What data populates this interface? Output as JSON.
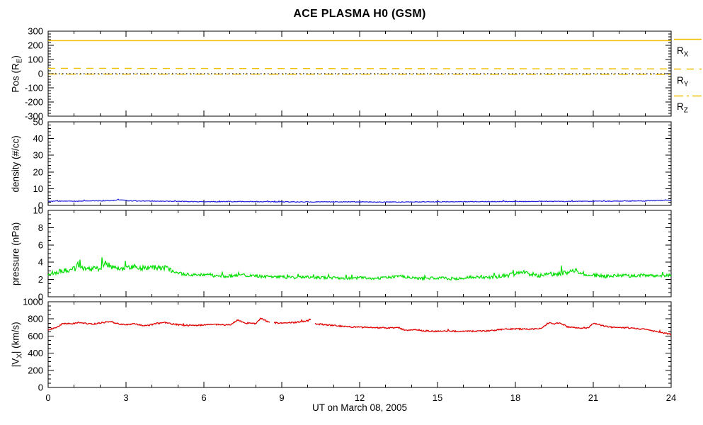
{
  "title": "ACE PLASMA H0 (GSM)",
  "xlabel": "UT on March 08, 2005",
  "legend": [
    {
      "label": [
        "R",
        "X"
      ],
      "style": "solid",
      "color": "#F0C000"
    },
    {
      "label": [
        "R",
        "Y"
      ],
      "style": "dashed",
      "color": "#F0C000"
    },
    {
      "label": [
        "R",
        "Z"
      ],
      "style": "dashdot",
      "color": "#F0C000"
    }
  ],
  "chart_data": [
    {
      "type": "line",
      "panel": "spacecraft-position",
      "ylabel": [
        "Pos (R",
        "E",
        ")"
      ],
      "ylim": [
        -300,
        300
      ],
      "yticks": [
        300,
        200,
        100,
        0,
        -100,
        -200,
        -300
      ],
      "minor_y": 20,
      "xlim": [
        0,
        24
      ],
      "xticks": [
        0,
        3,
        6,
        9,
        12,
        15,
        18,
        21,
        24
      ],
      "minor_x": 1,
      "series": [
        {
          "name": "R_X",
          "color": "#F0C000",
          "style": "solid",
          "width": 1.5,
          "keypoints": [
            [
              0,
              233
            ],
            [
              24,
              233
            ]
          ]
        },
        {
          "name": "R_Y",
          "color": "#F0C000",
          "style": "dashed",
          "width": 1.4,
          "keypoints": [
            [
              0,
              38
            ],
            [
              24,
              34
            ]
          ]
        },
        {
          "name": "R_Z",
          "color": "#F0C000",
          "style": "dashdot",
          "width": 1.4,
          "keypoints": [
            [
              0,
              -3
            ],
            [
              24,
              -5
            ]
          ]
        },
        {
          "name": "zero-reference",
          "color": "#000000",
          "style": "dotted",
          "width": 1.2,
          "keypoints": [
            [
              0,
              0
            ],
            [
              24,
              0
            ]
          ]
        }
      ]
    },
    {
      "type": "line",
      "panel": "density",
      "ylabel": [
        "density (#/cc)",
        "",
        ""
      ],
      "ylim": [
        0,
        50
      ],
      "yticks": [
        50,
        40,
        30,
        20,
        10,
        0
      ],
      "minor_y": 2,
      "xlim": [
        0,
        24
      ],
      "xticks": [
        0,
        3,
        6,
        9,
        12,
        15,
        18,
        21,
        24
      ],
      "minor_x": 1,
      "series": [
        {
          "name": "proton-density",
          "color": "#2222DD",
          "style": "solid",
          "width": 1.2,
          "noise": 0.22,
          "spike_prob": 0.012,
          "spike_scale": 2.0,
          "keypoints": [
            [
              0,
              2.4
            ],
            [
              0.5,
              2.6
            ],
            [
              1,
              2.5
            ],
            [
              1.5,
              2.6
            ],
            [
              2,
              2.7
            ],
            [
              2.5,
              2.9
            ],
            [
              2.7,
              3.5
            ],
            [
              3,
              2.9
            ],
            [
              3.5,
              2.6
            ],
            [
              4,
              2.7
            ],
            [
              4.5,
              2.5
            ],
            [
              5,
              2.4
            ],
            [
              5.5,
              2.3
            ],
            [
              6,
              2.2
            ],
            [
              7,
              2.3
            ],
            [
              8,
              2.3
            ],
            [
              9,
              2.1
            ],
            [
              10,
              2.1
            ],
            [
              11,
              2.2
            ],
            [
              12,
              2.1
            ],
            [
              13,
              2.0
            ],
            [
              14,
              2.1
            ],
            [
              15,
              2.2
            ],
            [
              16,
              2.2
            ],
            [
              17,
              2.3
            ],
            [
              18,
              2.3
            ],
            [
              19,
              2.4
            ],
            [
              20,
              2.4
            ],
            [
              21,
              2.5
            ],
            [
              22,
              2.6
            ],
            [
              23,
              2.7
            ],
            [
              24,
              3.1
            ]
          ]
        }
      ]
    },
    {
      "type": "line",
      "panel": "pressure",
      "ylabel": [
        "pressure (nPa)",
        "",
        ""
      ],
      "ylim": [
        0,
        10
      ],
      "yticks": [
        10,
        8,
        6,
        4,
        2,
        0
      ],
      "minor_y": 0.5,
      "xlim": [
        0,
        24
      ],
      "xticks": [
        0,
        3,
        6,
        9,
        12,
        15,
        18,
        21,
        24
      ],
      "minor_x": 1,
      "series": [
        {
          "name": "flow-pressure",
          "color": "#00DE00",
          "style": "solid",
          "width": 1.2,
          "noise_keys": [
            [
              0,
              0.28
            ],
            [
              4.5,
              0.32
            ],
            [
              5.5,
              0.18
            ],
            [
              12,
              0.15
            ],
            [
              17,
              0.18
            ],
            [
              18,
              0.26
            ],
            [
              21,
              0.26
            ],
            [
              22,
              0.18
            ],
            [
              24,
              0.18
            ]
          ],
          "spike_prob": 0.03,
          "spike_scale": 2.2,
          "keypoints": [
            [
              0,
              2.6
            ],
            [
              0.3,
              2.8
            ],
            [
              0.7,
              3.1
            ],
            [
              1,
              3.2
            ],
            [
              1.3,
              3.4
            ],
            [
              1.6,
              3.2
            ],
            [
              2,
              3.3
            ],
            [
              2.2,
              3.9
            ],
            [
              2.5,
              3.4
            ],
            [
              2.8,
              3.2
            ],
            [
              3,
              3.3
            ],
            [
              3.3,
              3.5
            ],
            [
              3.5,
              3.2
            ],
            [
              3.8,
              3.4
            ],
            [
              4,
              3.5
            ],
            [
              4.2,
              3.3
            ],
            [
              4.5,
              3.4
            ],
            [
              4.8,
              3.0
            ],
            [
              5,
              2.8
            ],
            [
              5.3,
              2.6
            ],
            [
              5.6,
              2.5
            ],
            [
              6,
              2.6
            ],
            [
              6.5,
              2.4
            ],
            [
              7,
              2.4
            ],
            [
              7.5,
              2.5
            ],
            [
              8,
              2.4
            ],
            [
              8.5,
              2.3
            ],
            [
              9,
              2.3
            ],
            [
              9.5,
              2.2
            ],
            [
              10,
              2.3
            ],
            [
              10.5,
              2.2
            ],
            [
              11,
              2.2
            ],
            [
              11.5,
              2.1
            ],
            [
              12,
              2.2
            ],
            [
              12.5,
              2.1
            ],
            [
              13,
              2.2
            ],
            [
              13.5,
              2.4
            ],
            [
              14,
              2.2
            ],
            [
              14.5,
              2.1
            ],
            [
              15,
              2.2
            ],
            [
              15.5,
              2.1
            ],
            [
              16,
              2.2
            ],
            [
              16.5,
              2.3
            ],
            [
              17,
              2.2
            ],
            [
              17.5,
              2.4
            ],
            [
              18,
              2.6
            ],
            [
              18.3,
              2.9
            ],
            [
              18.6,
              2.6
            ],
            [
              19,
              2.5
            ],
            [
              19.3,
              2.7
            ],
            [
              19.6,
              2.6
            ],
            [
              20,
              2.8
            ],
            [
              20.3,
              3.1
            ],
            [
              20.6,
              2.7
            ],
            [
              21,
              2.5
            ],
            [
              21.5,
              2.4
            ],
            [
              22,
              2.5
            ],
            [
              22.5,
              2.4
            ],
            [
              23,
              2.5
            ],
            [
              23.5,
              2.4
            ],
            [
              24,
              2.5
            ]
          ]
        }
      ]
    },
    {
      "type": "line",
      "panel": "velocity",
      "ylabel": [
        "|V",
        "X",
        "| (km/s)"
      ],
      "ylim": [
        0,
        1000
      ],
      "yticks": [
        1000,
        800,
        600,
        400,
        200,
        0
      ],
      "minor_y": 50,
      "xlim": [
        0,
        24
      ],
      "xticks": [
        0,
        3,
        6,
        9,
        12,
        15,
        18,
        21,
        24
      ],
      "minor_x": 1,
      "series": [
        {
          "name": "vx-magnitude",
          "color": "#E00000",
          "style": "solid",
          "width": 1.3,
          "noise": 8,
          "spike_prob": 0.008,
          "spike_scale": 2.0,
          "gaps": [
            [
              8.55,
              8.68
            ],
            [
              10.12,
              10.28
            ]
          ],
          "keypoints": [
            [
              0,
              672
            ],
            [
              0.3,
              700
            ],
            [
              0.6,
              748
            ],
            [
              0.9,
              742
            ],
            [
              1.2,
              758
            ],
            [
              1.5,
              745
            ],
            [
              1.8,
              742
            ],
            [
              2.1,
              758
            ],
            [
              2.4,
              768
            ],
            [
              2.7,
              742
            ],
            [
              3,
              730
            ],
            [
              3.3,
              744
            ],
            [
              3.6,
              722
            ],
            [
              3.9,
              728
            ],
            [
              4.2,
              748
            ],
            [
              4.5,
              756
            ],
            [
              4.8,
              740
            ],
            [
              5.1,
              728
            ],
            [
              5.5,
              722
            ],
            [
              6,
              730
            ],
            [
              6.5,
              734
            ],
            [
              7,
              728
            ],
            [
              7.3,
              786
            ],
            [
              7.6,
              752
            ],
            [
              8,
              744
            ],
            [
              8.2,
              806
            ],
            [
              8.4,
              776
            ],
            [
              8.6,
              756
            ],
            [
              9,
              752
            ],
            [
              9.5,
              758
            ],
            [
              10,
              778
            ],
            [
              10.1,
              798
            ],
            [
              10.3,
              742
            ],
            [
              10.6,
              734
            ],
            [
              11,
              722
            ],
            [
              11.5,
              710
            ],
            [
              12,
              702
            ],
            [
              12.5,
              700
            ],
            [
              13,
              694
            ],
            [
              13.5,
              698
            ],
            [
              13.8,
              664
            ],
            [
              14.1,
              678
            ],
            [
              14.5,
              660
            ],
            [
              15,
              654
            ],
            [
              15.5,
              658
            ],
            [
              16,
              654
            ],
            [
              16.5,
              658
            ],
            [
              17,
              662
            ],
            [
              17.5,
              678
            ],
            [
              18,
              684
            ],
            [
              18.5,
              678
            ],
            [
              19,
              688
            ],
            [
              19.3,
              752
            ],
            [
              19.5,
              738
            ],
            [
              19.7,
              756
            ],
            [
              20,
              708
            ],
            [
              20.4,
              698
            ],
            [
              20.8,
              694
            ],
            [
              21,
              748
            ],
            [
              21.3,
              728
            ],
            [
              21.6,
              704
            ],
            [
              22,
              700
            ],
            [
              22.5,
              694
            ],
            [
              23,
              678
            ],
            [
              23.5,
              648
            ],
            [
              24,
              620
            ]
          ]
        }
      ]
    }
  ]
}
